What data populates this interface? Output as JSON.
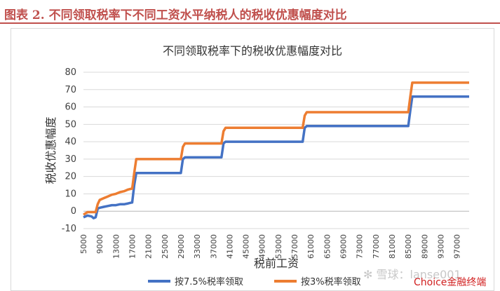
{
  "figure": {
    "title": "图表 2. 不同领取税率下不同工资水平纳税人的税收优惠幅度对比"
  },
  "watermarks": {
    "xueqiu": "✻ 雪球：lanse001",
    "choice": "Choice金融终端"
  },
  "colors": {
    "accent_red": "#c0504d",
    "series_7_5": "#4472c4",
    "series_3": "#ed7d31",
    "grid": "#d9d9d9"
  },
  "chart_data": {
    "type": "line",
    "title": "不同领取税率下的税收优惠幅度对比",
    "xlabel": "税前工资",
    "ylabel": "税收优惠幅度",
    "ylim": [
      -10,
      80
    ],
    "xlim": [
      5000,
      100000
    ],
    "yticks": [
      "-10",
      "0",
      "10",
      "20",
      "30",
      "40",
      "50",
      "60",
      "70",
      "80"
    ],
    "xticks": [
      {
        "value": 5000,
        "label": "5000"
      },
      {
        "value": 9000,
        "label": "9000"
      },
      {
        "value": 13000,
        "label": "13000"
      },
      {
        "value": 17000,
        "label": "17000"
      },
      {
        "value": 21000,
        "label": "21000"
      },
      {
        "value": 25000,
        "label": "25000"
      },
      {
        "value": 29000,
        "label": "29000"
      },
      {
        "value": 33000,
        "label": "33000"
      },
      {
        "value": 37000,
        "label": "37000"
      },
      {
        "value": 41000,
        "label": "41000"
      },
      {
        "value": 45000,
        "label": "45000"
      },
      {
        "value": 49000,
        "label": "49000"
      },
      {
        "value": 53000,
        "label": "53000"
      },
      {
        "value": 57000,
        "label": "57000"
      },
      {
        "value": 61000,
        "label": "61000"
      },
      {
        "value": 65000,
        "label": "65000"
      },
      {
        "value": 69000,
        "label": "69000"
      },
      {
        "value": 73000,
        "label": "73000"
      },
      {
        "value": 77000,
        "label": "77000"
      },
      {
        "value": 81000,
        "label": "81000"
      },
      {
        "value": 85000,
        "label": "85000"
      },
      {
        "value": 89000,
        "label": "89000"
      },
      {
        "value": 93000,
        "label": "93000"
      },
      {
        "value": 97000,
        "label": "97000"
      }
    ],
    "grid": true,
    "legend_position": "bottom",
    "series": [
      {
        "name": "按7.5%税率领取",
        "color": "#4472c4",
        "x": [
          5000,
          6000,
          7000,
          7500,
          8000,
          8500,
          9000,
          10000,
          11000,
          12000,
          13000,
          14000,
          15000,
          16000,
          16900,
          17000,
          17500,
          18000,
          29000,
          29500,
          30000,
          39000,
          39500,
          40000,
          59000,
          59500,
          60000,
          84000,
          85000,
          85500,
          86000,
          100000
        ],
        "y": [
          -3.5,
          -2.5,
          -3,
          -4,
          -3.5,
          1.5,
          2,
          2.5,
          3,
          3.5,
          3.5,
          4,
          4,
          4.5,
          5,
          5,
          15,
          22,
          22,
          30,
          31,
          31,
          39,
          40,
          40,
          48,
          49,
          49,
          49,
          58,
          66,
          66
        ]
      },
      {
        "name": "按3%税率领取",
        "color": "#ed7d31",
        "x": [
          5000,
          6000,
          7000,
          8000,
          8500,
          9000,
          10000,
          11000,
          12000,
          13000,
          14000,
          15000,
          16000,
          16900,
          17000,
          17500,
          18000,
          29000,
          29500,
          30000,
          39000,
          39500,
          40000,
          59000,
          59500,
          60000,
          84000,
          85000,
          85500,
          86000,
          100000
        ],
        "y": [
          -2,
          -0.5,
          -0.5,
          -0.5,
          4,
          6.5,
          7.5,
          8.5,
          9.5,
          10,
          11,
          11.5,
          12.5,
          13,
          13,
          22,
          30,
          30,
          37,
          39,
          39,
          46,
          48,
          48,
          55,
          57,
          57,
          57,
          66,
          74,
          74
        ]
      }
    ]
  }
}
